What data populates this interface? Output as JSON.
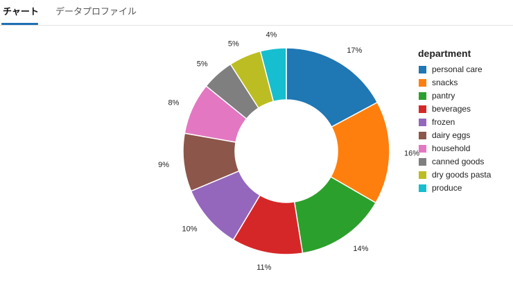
{
  "tabs": [
    {
      "label": "チャート",
      "active": true
    },
    {
      "label": "データプロファイル",
      "active": false
    }
  ],
  "chart_data": {
    "type": "pie",
    "donut": true,
    "title": "",
    "legend_title": "department",
    "legend_position": "right",
    "categories": [
      "personal care",
      "snacks",
      "pantry",
      "beverages",
      "frozen",
      "dairy eggs",
      "household",
      "canned goods",
      "dry goods pasta",
      "produce"
    ],
    "values": [
      17,
      16,
      14,
      11,
      10,
      9,
      8,
      5,
      5,
      4
    ],
    "labels": [
      "17%",
      "16%",
      "14%",
      "11%",
      "10%",
      "9%",
      "8%",
      "5%",
      "5%",
      "4%"
    ],
    "colors": [
      "#1f77b4",
      "#ff7f0e",
      "#2ca02c",
      "#d62728",
      "#9467bd",
      "#8c564b",
      "#e377c2",
      "#7f7f7f",
      "#bcbd22",
      "#17becf"
    ]
  }
}
